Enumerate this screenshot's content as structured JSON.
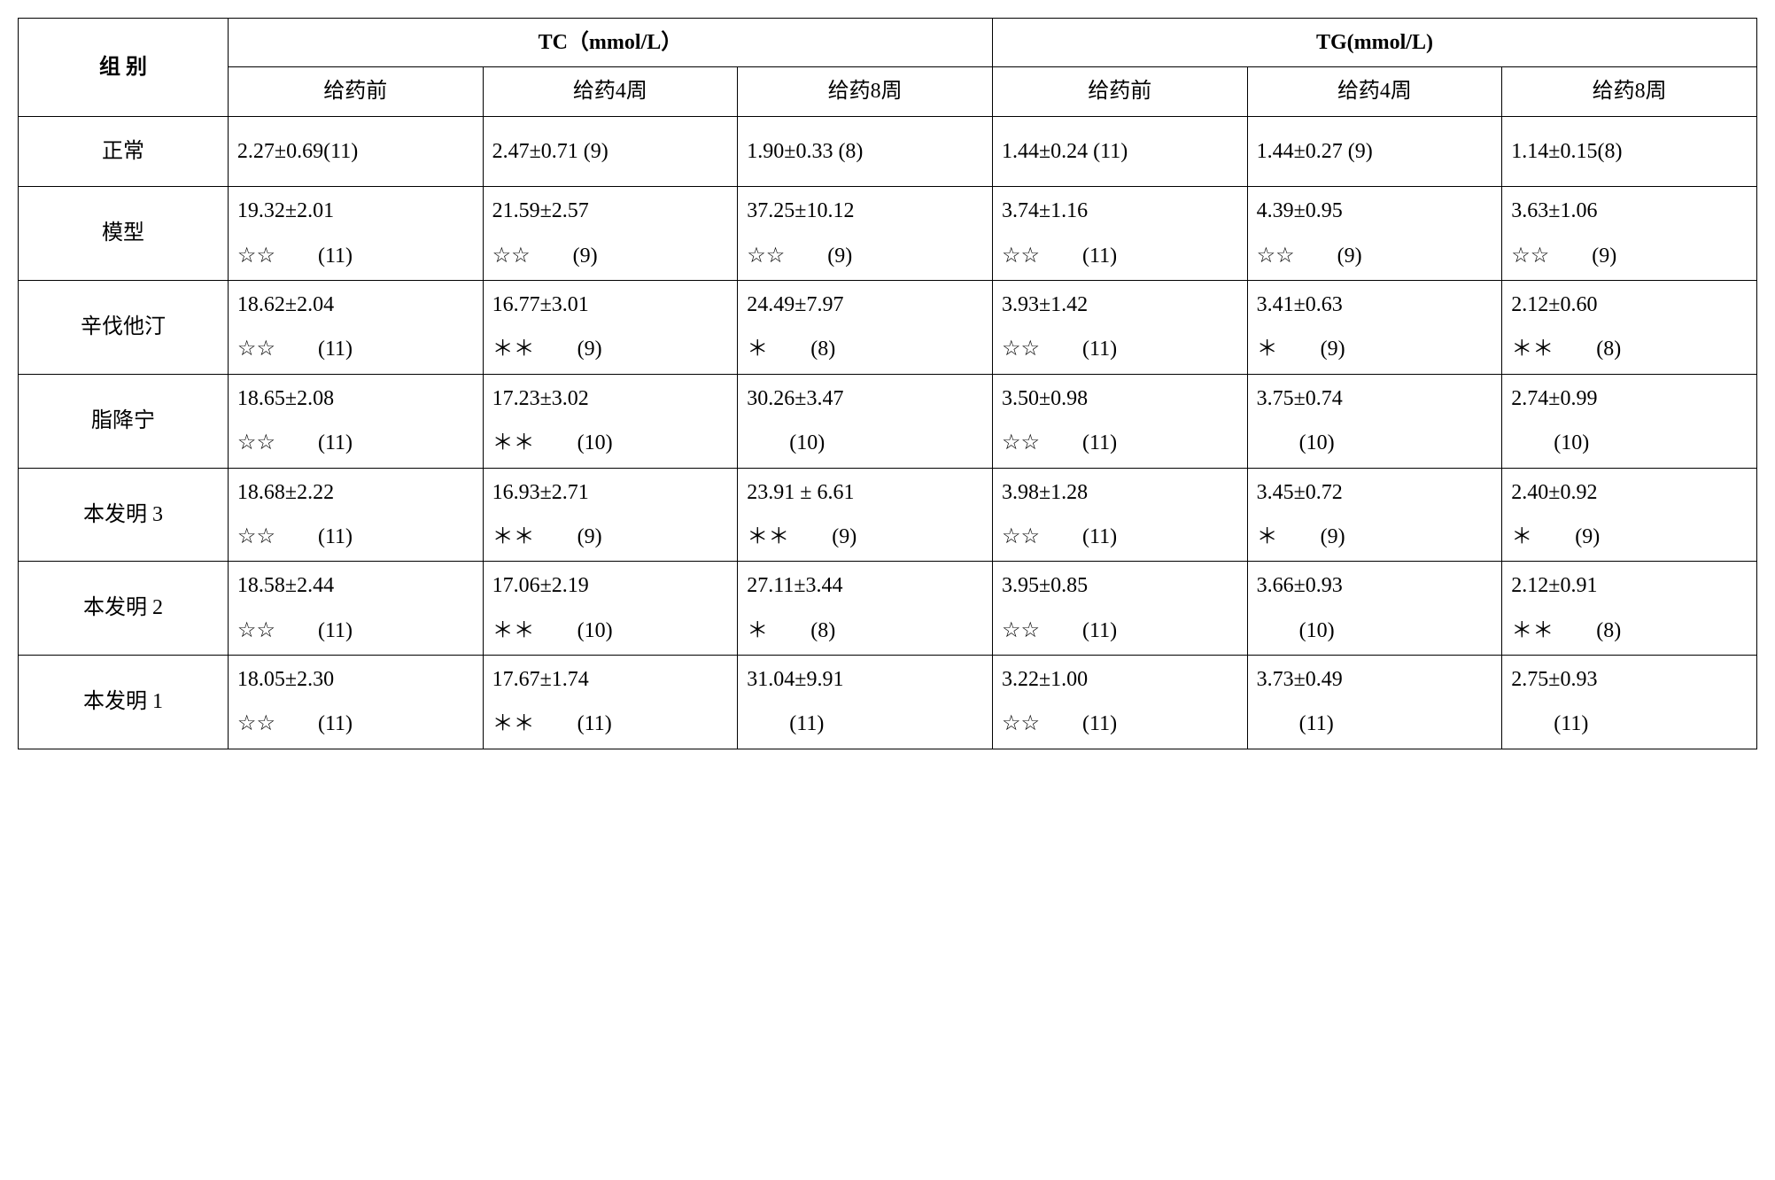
{
  "table": {
    "type": "table",
    "border_color": "#000000",
    "background_color": "#ffffff",
    "text_color": "#000000",
    "font_size_pt": 18,
    "columns": {
      "group": "组 别",
      "tc_header": "TC（mmol/L）",
      "tg_header": "TG(mmol/L)",
      "sub_headers": [
        "给药前",
        "给药4周",
        "给药8周",
        "给药前",
        "给药4周",
        "给药8周"
      ]
    },
    "rows": [
      {
        "group": "正常",
        "single_line": true,
        "cells": [
          {
            "v": "2.27±0.69(11)"
          },
          {
            "v": "2.47±0.71 (9)"
          },
          {
            "v": "1.90±0.33 (8)"
          },
          {
            "v": "1.44±0.24 (11)"
          },
          {
            "v": "1.44±0.27 (9)"
          },
          {
            "v": "1.14±0.15(8)"
          }
        ]
      },
      {
        "group": "模型",
        "cells": [
          {
            "l1": "19.32±2.01",
            "l2": "☆☆　　(11)"
          },
          {
            "l1": "21.59±2.57",
            "l2": "☆☆　　(9)"
          },
          {
            "l1": "37.25±10.12",
            "l2": "☆☆　　(9)"
          },
          {
            "l1": "3.74±1.16",
            "l2": "☆☆　　(11)"
          },
          {
            "l1": "4.39±0.95",
            "l2": "☆☆　　(9)"
          },
          {
            "l1": "3.63±1.06",
            "l2": "☆☆　　(9)"
          }
        ]
      },
      {
        "group": "辛伐他汀",
        "cells": [
          {
            "l1": "18.62±2.04",
            "l2": "☆☆　　(11)"
          },
          {
            "l1": "16.77±3.01",
            "l2": "＊＊　　(9)"
          },
          {
            "l1": "24.49±7.97",
            "l2": "＊　　(8)"
          },
          {
            "l1": "3.93±1.42",
            "l2": "☆☆　　(11)"
          },
          {
            "l1": "3.41±0.63",
            "l2": "＊　　(9)"
          },
          {
            "l1": "2.12±0.60",
            "l2": "＊＊　　(8)"
          }
        ]
      },
      {
        "group": "脂降宁",
        "cells": [
          {
            "l1": "18.65±2.08",
            "l2": "☆☆　　(11)"
          },
          {
            "l1": "17.23±3.02",
            "l2": "＊＊　　(10)"
          },
          {
            "l1": "30.26±3.47",
            "l2": "　　(10)"
          },
          {
            "l1": "3.50±0.98",
            "l2": "☆☆　　(11)"
          },
          {
            "l1": "3.75±0.74",
            "l2": "　　(10)"
          },
          {
            "l1": "2.74±0.99",
            "l2": "　　(10)"
          }
        ]
      },
      {
        "group": "本发明 3",
        "cells": [
          {
            "l1": "18.68±2.22",
            "l2": "☆☆　　(11)"
          },
          {
            "l1": "16.93±2.71",
            "l2": "＊＊　　(9)"
          },
          {
            "l1": "23.91 ± 6.61",
            "l2": "＊＊　　(9)"
          },
          {
            "l1": "3.98±1.28",
            "l2": "☆☆　　(11)"
          },
          {
            "l1": "3.45±0.72",
            "l2": "＊　　(9)"
          },
          {
            "l1": "2.40±0.92",
            "l2": "＊　　(9)"
          }
        ]
      },
      {
        "group": "本发明 2",
        "cells": [
          {
            "l1": "18.58±2.44",
            "l2": "☆☆　　(11)"
          },
          {
            "l1": "17.06±2.19",
            "l2": "＊＊　　(10)"
          },
          {
            "l1": "27.11±3.44",
            "l2": "＊　　(8)"
          },
          {
            "l1": "3.95±0.85",
            "l2": "☆☆　　(11)"
          },
          {
            "l1": "3.66±0.93",
            "l2": "　　(10)"
          },
          {
            "l1": "2.12±0.91",
            "l2": "＊＊　　(8)"
          }
        ]
      },
      {
        "group": "本发明 1",
        "cells": [
          {
            "l1": "18.05±2.30",
            "l2": "☆☆　　(11)"
          },
          {
            "l1": "17.67±1.74",
            "l2": "＊＊　　(11)"
          },
          {
            "l1": "31.04±9.91",
            "l2": "　　(11)"
          },
          {
            "l1": "3.22±1.00",
            "l2": "☆☆　　(11)"
          },
          {
            "l1": "3.73±0.49",
            "l2": "　　(11)"
          },
          {
            "l1": "2.75±0.93",
            "l2": "　　(11)"
          }
        ]
      }
    ]
  }
}
